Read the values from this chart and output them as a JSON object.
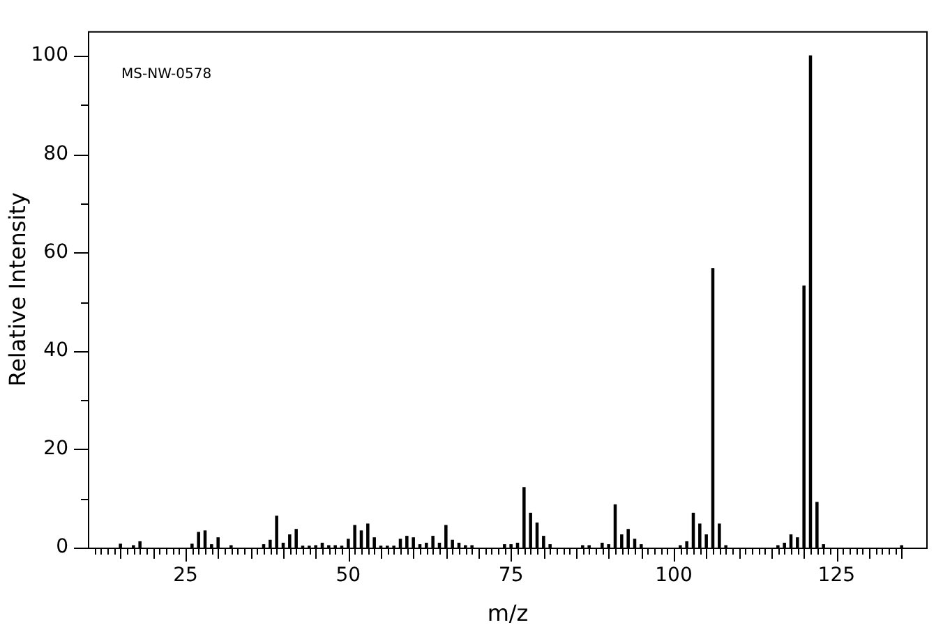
{
  "chart_data": {
    "type": "bar",
    "xlabel": "m/z",
    "ylabel": "Relative Intensity",
    "annotations": [
      "MS-NW-0578"
    ],
    "x": [
      15,
      17,
      18,
      26,
      27,
      28,
      29,
      30,
      32,
      37,
      38,
      39,
      40,
      41,
      42,
      43,
      44,
      45,
      46,
      47,
      48,
      49,
      50,
      51,
      52,
      53,
      54,
      55,
      56,
      57,
      58,
      59,
      60,
      61,
      62,
      63,
      64,
      65,
      66,
      67,
      68,
      69,
      74,
      75,
      76,
      77,
      78,
      79,
      80,
      81,
      86,
      87,
      89,
      90,
      91,
      92,
      93,
      94,
      95,
      101,
      102,
      103,
      104,
      105,
      106,
      107,
      108,
      116,
      117,
      118,
      119,
      120,
      121,
      122,
      123,
      135
    ],
    "series": [
      {
        "color": "#000000",
        "values": [
          0.7,
          0.4,
          1.2,
          0.7,
          3.1,
          3.4,
          0.6,
          2.0,
          0.4,
          0.6,
          1.5,
          6.4,
          0.9,
          2.6,
          3.7,
          0.3,
          0.3,
          0.4,
          0.9,
          0.4,
          0.4,
          0.3,
          1.7,
          4.5,
          3.4,
          4.8,
          2.0,
          0.3,
          0.3,
          0.3,
          1.7,
          2.3,
          2.0,
          0.6,
          0.9,
          2.3,
          0.9,
          4.5,
          1.5,
          0.9,
          0.4,
          0.4,
          0.6,
          0.6,
          0.9,
          12.2,
          7.0,
          5.0,
          2.3,
          0.6,
          0.4,
          0.4,
          0.9,
          0.6,
          8.7,
          2.6,
          3.7,
          1.7,
          0.6,
          0.4,
          1.2,
          7.0,
          4.8,
          2.6,
          56.7,
          4.8,
          0.4,
          0.4,
          0.9,
          2.6,
          2.0,
          53.2,
          100,
          9.2,
          0.6,
          0.4
        ]
      }
    ],
    "xlim": [
      10,
      139
    ],
    "xticks": [
      {
        "value": 11,
        "label": null
      },
      {
        "value": 12,
        "label": null
      },
      {
        "value": 13,
        "label": null
      },
      {
        "value": 14,
        "label": null
      },
      {
        "value": 15,
        "label": null
      },
      {
        "value": 16,
        "label": null
      },
      {
        "value": 17,
        "label": null
      },
      {
        "value": 18,
        "label": null
      },
      {
        "value": 19,
        "label": null
      },
      {
        "value": 20,
        "label": null
      },
      {
        "value": 21,
        "label": null
      },
      {
        "value": 22,
        "label": null
      },
      {
        "value": 23,
        "label": null
      },
      {
        "value": 24,
        "label": null
      },
      25,
      {
        "value": 26,
        "label": null
      },
      {
        "value": 27,
        "label": null
      },
      {
        "value": 28,
        "label": null
      },
      {
        "value": 29,
        "label": null
      },
      {
        "value": 30,
        "label": null
      },
      {
        "value": 31,
        "label": null
      },
      {
        "value": 32,
        "label": null
      },
      {
        "value": 33,
        "label": null
      },
      {
        "value": 34,
        "label": null
      },
      {
        "value": 35,
        "label": null
      },
      {
        "value": 36,
        "label": null
      },
      {
        "value": 37,
        "label": null
      },
      {
        "value": 38,
        "label": null
      },
      {
        "value": 39,
        "label": null
      },
      {
        "value": 40,
        "label": null
      },
      {
        "value": 41,
        "label": null
      },
      {
        "value": 42,
        "label": null
      },
      {
        "value": 43,
        "label": null
      },
      {
        "value": 44,
        "label": null
      },
      {
        "value": 45,
        "label": null
      },
      {
        "value": 46,
        "label": null
      },
      {
        "value": 47,
        "label": null
      },
      {
        "value": 48,
        "label": null
      },
      {
        "value": 49,
        "label": null
      },
      50,
      {
        "value": 51,
        "label": null
      },
      {
        "value": 52,
        "label": null
      },
      {
        "value": 53,
        "label": null
      },
      {
        "value": 54,
        "label": null
      },
      {
        "value": 55,
        "label": null
      },
      {
        "value": 56,
        "label": null
      },
      {
        "value": 57,
        "label": null
      },
      {
        "value": 58,
        "label": null
      },
      {
        "value": 59,
        "label": null
      },
      {
        "value": 60,
        "label": null
      },
      {
        "value": 61,
        "label": null
      },
      {
        "value": 62,
        "label": null
      },
      {
        "value": 63,
        "label": null
      },
      {
        "value": 64,
        "label": null
      },
      {
        "value": 65,
        "label": null
      },
      {
        "value": 66,
        "label": null
      },
      {
        "value": 67,
        "label": null
      },
      {
        "value": 68,
        "label": null
      },
      {
        "value": 69,
        "label": null
      },
      {
        "value": 70,
        "label": null
      },
      {
        "value": 71,
        "label": null
      },
      {
        "value": 72,
        "label": null
      },
      {
        "value": 73,
        "label": null
      },
      {
        "value": 74,
        "label": null
      },
      75,
      {
        "value": 76,
        "label": null
      },
      {
        "value": 77,
        "label": null
      },
      {
        "value": 78,
        "label": null
      },
      {
        "value": 79,
        "label": null
      },
      {
        "value": 80,
        "label": null
      },
      {
        "value": 81,
        "label": null
      },
      {
        "value": 82,
        "label": null
      },
      {
        "value": 83,
        "label": null
      },
      {
        "value": 84,
        "label": null
      },
      {
        "value": 85,
        "label": null
      },
      {
        "value": 86,
        "label": null
      },
      {
        "value": 87,
        "label": null
      },
      {
        "value": 88,
        "label": null
      },
      {
        "value": 89,
        "label": null
      },
      {
        "value": 90,
        "label": null
      },
      {
        "value": 91,
        "label": null
      },
      {
        "value": 92,
        "label": null
      },
      {
        "value": 93,
        "label": null
      },
      {
        "value": 94,
        "label": null
      },
      {
        "value": 95,
        "label": null
      },
      {
        "value": 96,
        "label": null
      },
      {
        "value": 97,
        "label": null
      },
      {
        "value": 98,
        "label": null
      },
      {
        "value": 99,
        "label": null
      },
      100,
      {
        "value": 101,
        "label": null
      },
      {
        "value": 102,
        "label": null
      },
      {
        "value": 103,
        "label": null
      },
      {
        "value": 104,
        "label": null
      },
      {
        "value": 105,
        "label": null
      },
      {
        "value": 106,
        "label": null
      },
      {
        "value": 107,
        "label": null
      },
      {
        "value": 108,
        "label": null
      },
      {
        "value": 109,
        "label": null
      },
      {
        "value": 110,
        "label": null
      },
      {
        "value": 111,
        "label": null
      },
      {
        "value": 112,
        "label": null
      },
      {
        "value": 113,
        "label": null
      },
      {
        "value": 114,
        "label": null
      },
      {
        "value": 115,
        "label": null
      },
      {
        "value": 116,
        "label": null
      },
      {
        "value": 117,
        "label": null
      },
      {
        "value": 118,
        "label": null
      },
      {
        "value": 119,
        "label": null
      },
      {
        "value": 120,
        "label": null
      },
      {
        "value": 121,
        "label": null
      },
      {
        "value": 122,
        "label": null
      },
      {
        "value": 123,
        "label": null
      },
      {
        "value": 124,
        "label": null
      },
      125,
      {
        "value": 126,
        "label": null
      },
      {
        "value": 127,
        "label": null
      },
      {
        "value": 128,
        "label": null
      },
      {
        "value": 129,
        "label": null
      },
      {
        "value": 130,
        "label": null
      },
      {
        "value": 131,
        "label": null
      },
      {
        "value": 132,
        "label": null
      },
      {
        "value": 133,
        "label": null
      },
      {
        "value": 134,
        "label": null
      },
      {
        "value": 135,
        "label": null
      }
    ],
    "ylim": [
      0,
      105
    ],
    "yticks": [
      0,
      {
        "value": 10,
        "label": null
      },
      20,
      {
        "value": 30,
        "label": null
      },
      40,
      {
        "value": 50,
        "label": null
      },
      60,
      {
        "value": 70,
        "label": null
      },
      80,
      {
        "value": 90,
        "label": null
      },
      100
    ],
    "grid": false,
    "legend": false
  }
}
